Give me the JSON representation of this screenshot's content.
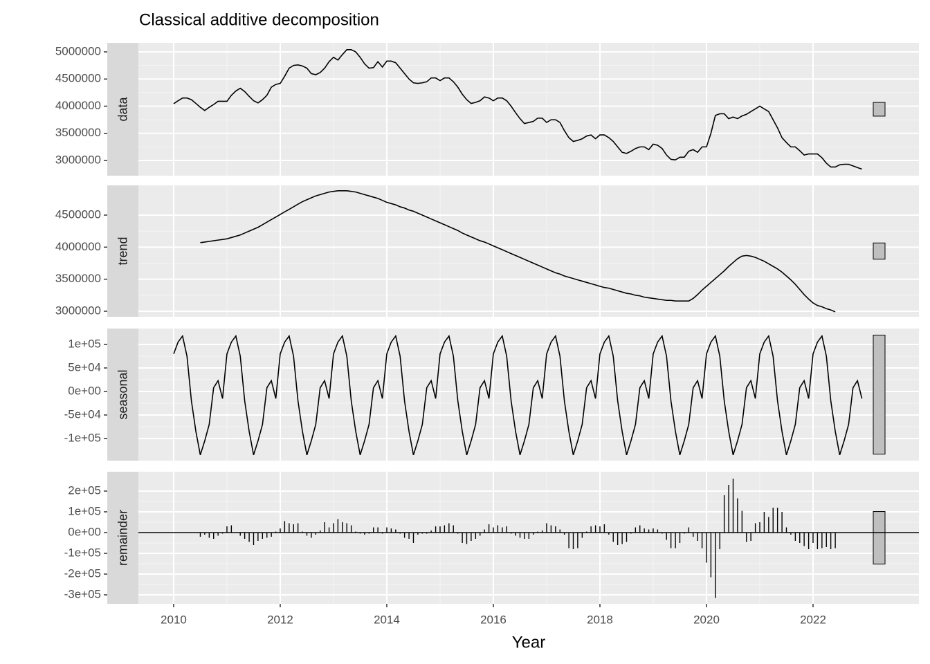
{
  "chart_data": {
    "type": "facets",
    "title": "Classical additive decomposition",
    "xlabel": "Year",
    "xlim": [
      2009.338,
      2023.987
    ],
    "xticks": [
      2010,
      2012,
      2014,
      2016,
      2018,
      2020,
      2022
    ],
    "range_bar": 253000,
    "x": [
      2010,
      2010.083,
      2010.167,
      2010.25,
      2010.333,
      2010.417,
      2010.5,
      2010.583,
      2010.667,
      2010.75,
      2010.833,
      2010.917,
      2011,
      2011.083,
      2011.167,
      2011.25,
      2011.333,
      2011.417,
      2011.5,
      2011.583,
      2011.667,
      2011.75,
      2011.833,
      2011.917,
      2012,
      2012.083,
      2012.167,
      2012.25,
      2012.333,
      2012.417,
      2012.5,
      2012.583,
      2012.667,
      2012.75,
      2012.833,
      2012.917,
      2013,
      2013.083,
      2013.167,
      2013.25,
      2013.333,
      2013.417,
      2013.5,
      2013.583,
      2013.667,
      2013.75,
      2013.833,
      2013.917,
      2014,
      2014.083,
      2014.167,
      2014.25,
      2014.333,
      2014.417,
      2014.5,
      2014.583,
      2014.667,
      2014.75,
      2014.833,
      2014.917,
      2015,
      2015.083,
      2015.167,
      2015.25,
      2015.333,
      2015.417,
      2015.5,
      2015.583,
      2015.667,
      2015.75,
      2015.833,
      2015.917,
      2016,
      2016.083,
      2016.167,
      2016.25,
      2016.333,
      2016.417,
      2016.5,
      2016.583,
      2016.667,
      2016.75,
      2016.833,
      2016.917,
      2017,
      2017.083,
      2017.167,
      2017.25,
      2017.333,
      2017.417,
      2017.5,
      2017.583,
      2017.667,
      2017.75,
      2017.833,
      2017.917,
      2018,
      2018.083,
      2018.167,
      2018.25,
      2018.333,
      2018.417,
      2018.5,
      2018.583,
      2018.667,
      2018.75,
      2018.833,
      2018.917,
      2019,
      2019.083,
      2019.167,
      2019.25,
      2019.333,
      2019.417,
      2019.5,
      2019.583,
      2019.667,
      2019.75,
      2019.833,
      2019.917,
      2020,
      2020.083,
      2020.167,
      2020.25,
      2020.333,
      2020.417,
      2020.5,
      2020.583,
      2020.667,
      2020.75,
      2020.833,
      2020.917,
      2021,
      2021.083,
      2021.167,
      2021.25,
      2021.333,
      2021.417,
      2021.5,
      2021.583,
      2021.667,
      2021.75,
      2021.833,
      2021.917,
      2022,
      2022.083,
      2022.167,
      2022.25,
      2022.333,
      2022.417,
      2022.5,
      2022.583,
      2022.667,
      2022.75,
      2022.833,
      2022.917
    ],
    "panels": [
      {
        "label": "data",
        "type": "line",
        "ylim": [
          2719700,
          5165600
        ],
        "yticks": [
          3000000,
          3500000,
          4000000,
          4500000,
          5000000
        ],
        "values": [
          4045000,
          4100000,
          4150000,
          4150000,
          4120000,
          4050000,
          3980000,
          3920000,
          3980000,
          4030000,
          4090000,
          4090000,
          4090000,
          4200000,
          4280000,
          4330000,
          4270000,
          4180000,
          4100000,
          4060000,
          4120000,
          4200000,
          4350000,
          4400000,
          4420000,
          4550000,
          4700000,
          4750000,
          4760000,
          4740000,
          4700000,
          4600000,
          4580000,
          4620000,
          4700000,
          4820000,
          4900000,
          4850000,
          4950000,
          5040000,
          5040000,
          5000000,
          4900000,
          4780000,
          4700000,
          4710000,
          4820000,
          4720000,
          4830000,
          4830000,
          4800000,
          4700000,
          4600000,
          4500000,
          4430000,
          4420000,
          4430000,
          4450000,
          4520000,
          4520000,
          4470000,
          4520000,
          4520000,
          4450000,
          4350000,
          4220000,
          4120000,
          4050000,
          4070000,
          4100000,
          4170000,
          4150000,
          4100000,
          4150000,
          4150000,
          4100000,
          4000000,
          3880000,
          3770000,
          3680000,
          3700000,
          3720000,
          3780000,
          3780000,
          3700000,
          3750000,
          3750000,
          3700000,
          3550000,
          3420000,
          3350000,
          3370000,
          3400000,
          3450000,
          3470000,
          3400000,
          3470000,
          3470000,
          3420000,
          3350000,
          3250000,
          3150000,
          3130000,
          3170000,
          3220000,
          3250000,
          3250000,
          3200000,
          3300000,
          3280000,
          3220000,
          3100000,
          3020000,
          3010000,
          3060000,
          3060000,
          3170000,
          3200000,
          3150000,
          3250000,
          3250000,
          3500000,
          3830000,
          3860000,
          3860000,
          3770000,
          3800000,
          3770000,
          3820000,
          3850000,
          3900000,
          3950000,
          4000000,
          3950000,
          3900000,
          3750000,
          3600000,
          3420000,
          3330000,
          3250000,
          3250000,
          3180000,
          3100000,
          3120000,
          3120000,
          3120000,
          3050000,
          2950000,
          2880000,
          2880000,
          2920000,
          2930000,
          2930000,
          2900000,
          2870000,
          2840000
        ]
      },
      {
        "label": "trend",
        "type": "line",
        "ylim": [
          2913700,
          4964000
        ],
        "yticks": [
          3000000,
          3500000,
          4000000,
          4500000
        ],
        "values": [
          null,
          null,
          null,
          null,
          null,
          null,
          4070000,
          4080000,
          4090000,
          4100000,
          4110000,
          4120000,
          4130000,
          4150000,
          4170000,
          4190000,
          4220000,
          4250000,
          4280000,
          4310000,
          4350000,
          4390000,
          4430000,
          4470000,
          4510000,
          4550000,
          4590000,
          4630000,
          4670000,
          4710000,
          4740000,
          4770000,
          4800000,
          4820000,
          4840000,
          4860000,
          4870000,
          4880000,
          4880000,
          4880000,
          4870000,
          4860000,
          4840000,
          4820000,
          4800000,
          4780000,
          4760000,
          4730000,
          4700000,
          4680000,
          4660000,
          4630000,
          4610000,
          4580000,
          4560000,
          4530000,
          4500000,
          4470000,
          4440000,
          4410000,
          4380000,
          4350000,
          4320000,
          4290000,
          4260000,
          4220000,
          4190000,
          4160000,
          4130000,
          4100000,
          4080000,
          4050000,
          4020000,
          3990000,
          3960000,
          3930000,
          3900000,
          3870000,
          3840000,
          3810000,
          3780000,
          3750000,
          3720000,
          3690000,
          3660000,
          3630000,
          3600000,
          3580000,
          3550000,
          3530000,
          3510000,
          3490000,
          3470000,
          3450000,
          3430000,
          3410000,
          3390000,
          3370000,
          3360000,
          3340000,
          3320000,
          3300000,
          3280000,
          3270000,
          3250000,
          3240000,
          3220000,
          3210000,
          3200000,
          3190000,
          3180000,
          3170000,
          3170000,
          3160000,
          3160000,
          3160000,
          3160000,
          3200000,
          3260000,
          3330000,
          3390000,
          3450000,
          3510000,
          3570000,
          3630000,
          3700000,
          3760000,
          3820000,
          3860000,
          3870000,
          3860000,
          3840000,
          3810000,
          3780000,
          3740000,
          3700000,
          3660000,
          3610000,
          3550000,
          3490000,
          3420000,
          3340000,
          3260000,
          3190000,
          3130000,
          3090000,
          3070000,
          3040000,
          3020000,
          2990000,
          null,
          null,
          null,
          null,
          null,
          null
        ]
      },
      {
        "label": "seasonal",
        "type": "line",
        "ylim": [
          -147060,
          133800
        ],
        "yticks": [
          {
            "value": 100000,
            "label": "1e+05"
          },
          {
            "value": 50000,
            "label": "5e+04"
          },
          {
            "value": 0,
            "label": "0e+00"
          },
          {
            "value": -50000,
            "label": "-5e+04"
          },
          {
            "value": -100000,
            "label": "-1e+05"
          }
        ],
        "values": [
          80000,
          105000,
          118000,
          75000,
          -20000,
          -85000,
          -135000,
          -105000,
          -70000,
          8000,
          23000,
          -15000,
          80000,
          105000,
          118000,
          75000,
          -20000,
          -85000,
          -135000,
          -105000,
          -70000,
          8000,
          23000,
          -15000,
          80000,
          105000,
          118000,
          75000,
          -20000,
          -85000,
          -135000,
          -105000,
          -70000,
          8000,
          23000,
          -15000,
          80000,
          105000,
          118000,
          75000,
          -20000,
          -85000,
          -135000,
          -105000,
          -70000,
          8000,
          23000,
          -15000,
          80000,
          105000,
          118000,
          75000,
          -20000,
          -85000,
          -135000,
          -105000,
          -70000,
          8000,
          23000,
          -15000,
          80000,
          105000,
          118000,
          75000,
          -20000,
          -85000,
          -135000,
          -105000,
          -70000,
          8000,
          23000,
          -15000,
          80000,
          105000,
          118000,
          75000,
          -20000,
          -85000,
          -135000,
          -105000,
          -70000,
          8000,
          23000,
          -15000,
          80000,
          105000,
          118000,
          75000,
          -20000,
          -85000,
          -135000,
          -105000,
          -70000,
          8000,
          23000,
          -15000,
          80000,
          105000,
          118000,
          75000,
          -20000,
          -85000,
          -135000,
          -105000,
          -70000,
          8000,
          23000,
          -15000,
          80000,
          105000,
          118000,
          75000,
          -20000,
          -85000,
          -135000,
          -105000,
          -70000,
          8000,
          23000,
          -15000,
          80000,
          105000,
          118000,
          75000,
          -20000,
          -85000,
          -135000,
          -105000,
          -70000,
          8000,
          23000,
          -15000,
          80000,
          105000,
          118000,
          75000,
          -20000,
          -85000,
          -135000,
          -105000,
          -70000,
          8000,
          23000,
          -15000,
          80000,
          105000,
          118000,
          75000,
          -20000,
          -85000,
          -135000,
          -105000,
          -70000,
          8000,
          23000,
          -15000
        ]
      },
      {
        "label": "remainder",
        "type": "bar",
        "ylim": [
          -343300,
          293300
        ],
        "yticks": [
          {
            "value": 200000,
            "label": "2e+05"
          },
          {
            "value": 100000,
            "label": "1e+05"
          },
          {
            "value": 0,
            "label": "0e+00"
          },
          {
            "value": -100000,
            "label": "-1e+05"
          },
          {
            "value": -200000,
            "label": "-2e+05"
          },
          {
            "value": -300000,
            "label": "-3e+05"
          }
        ],
        "values": [
          null,
          null,
          null,
          null,
          null,
          null,
          -20000,
          -10000,
          -25000,
          -30000,
          -15000,
          -5000,
          30000,
          35000,
          0,
          -15000,
          -30000,
          -45000,
          -60000,
          -40000,
          -30000,
          -25000,
          -20000,
          5000,
          20000,
          55000,
          45000,
          40000,
          45000,
          5000,
          -15000,
          -25000,
          -10000,
          10000,
          50000,
          25000,
          45000,
          65000,
          50000,
          45000,
          35000,
          5000,
          -5000,
          -10000,
          -5000,
          25000,
          25000,
          -5000,
          25000,
          20000,
          15000,
          -5000,
          -25000,
          -30000,
          -50000,
          -10000,
          -5000,
          -5000,
          10000,
          30000,
          30000,
          35000,
          45000,
          35000,
          -5000,
          -50000,
          -55000,
          -40000,
          -30000,
          -15000,
          15000,
          40000,
          25000,
          35000,
          25000,
          30000,
          -5000,
          -15000,
          -25000,
          -30000,
          -30000,
          -10000,
          5000,
          10000,
          45000,
          35000,
          30000,
          15000,
          -10000,
          -75000,
          -80000,
          -75000,
          -25000,
          5000,
          30000,
          35000,
          30000,
          40000,
          -10000,
          -45000,
          -60000,
          -55000,
          -45000,
          -5000,
          25000,
          35000,
          20000,
          15000,
          20000,
          15000,
          -5000,
          -35000,
          -75000,
          -75000,
          -50000,
          -5000,
          25000,
          -20000,
          -40000,
          -75000,
          -145000,
          -215000,
          -315000,
          -80000,
          180000,
          230000,
          260000,
          165000,
          105000,
          -45000,
          -40000,
          45000,
          50000,
          100000,
          75000,
          120000,
          120000,
          100000,
          25000,
          -10000,
          -40000,
          -50000,
          -65000,
          -80000,
          -50000,
          -80000,
          -75000,
          -70000,
          -80000,
          -75000,
          null,
          null,
          null,
          null,
          null,
          null
        ]
      }
    ]
  }
}
